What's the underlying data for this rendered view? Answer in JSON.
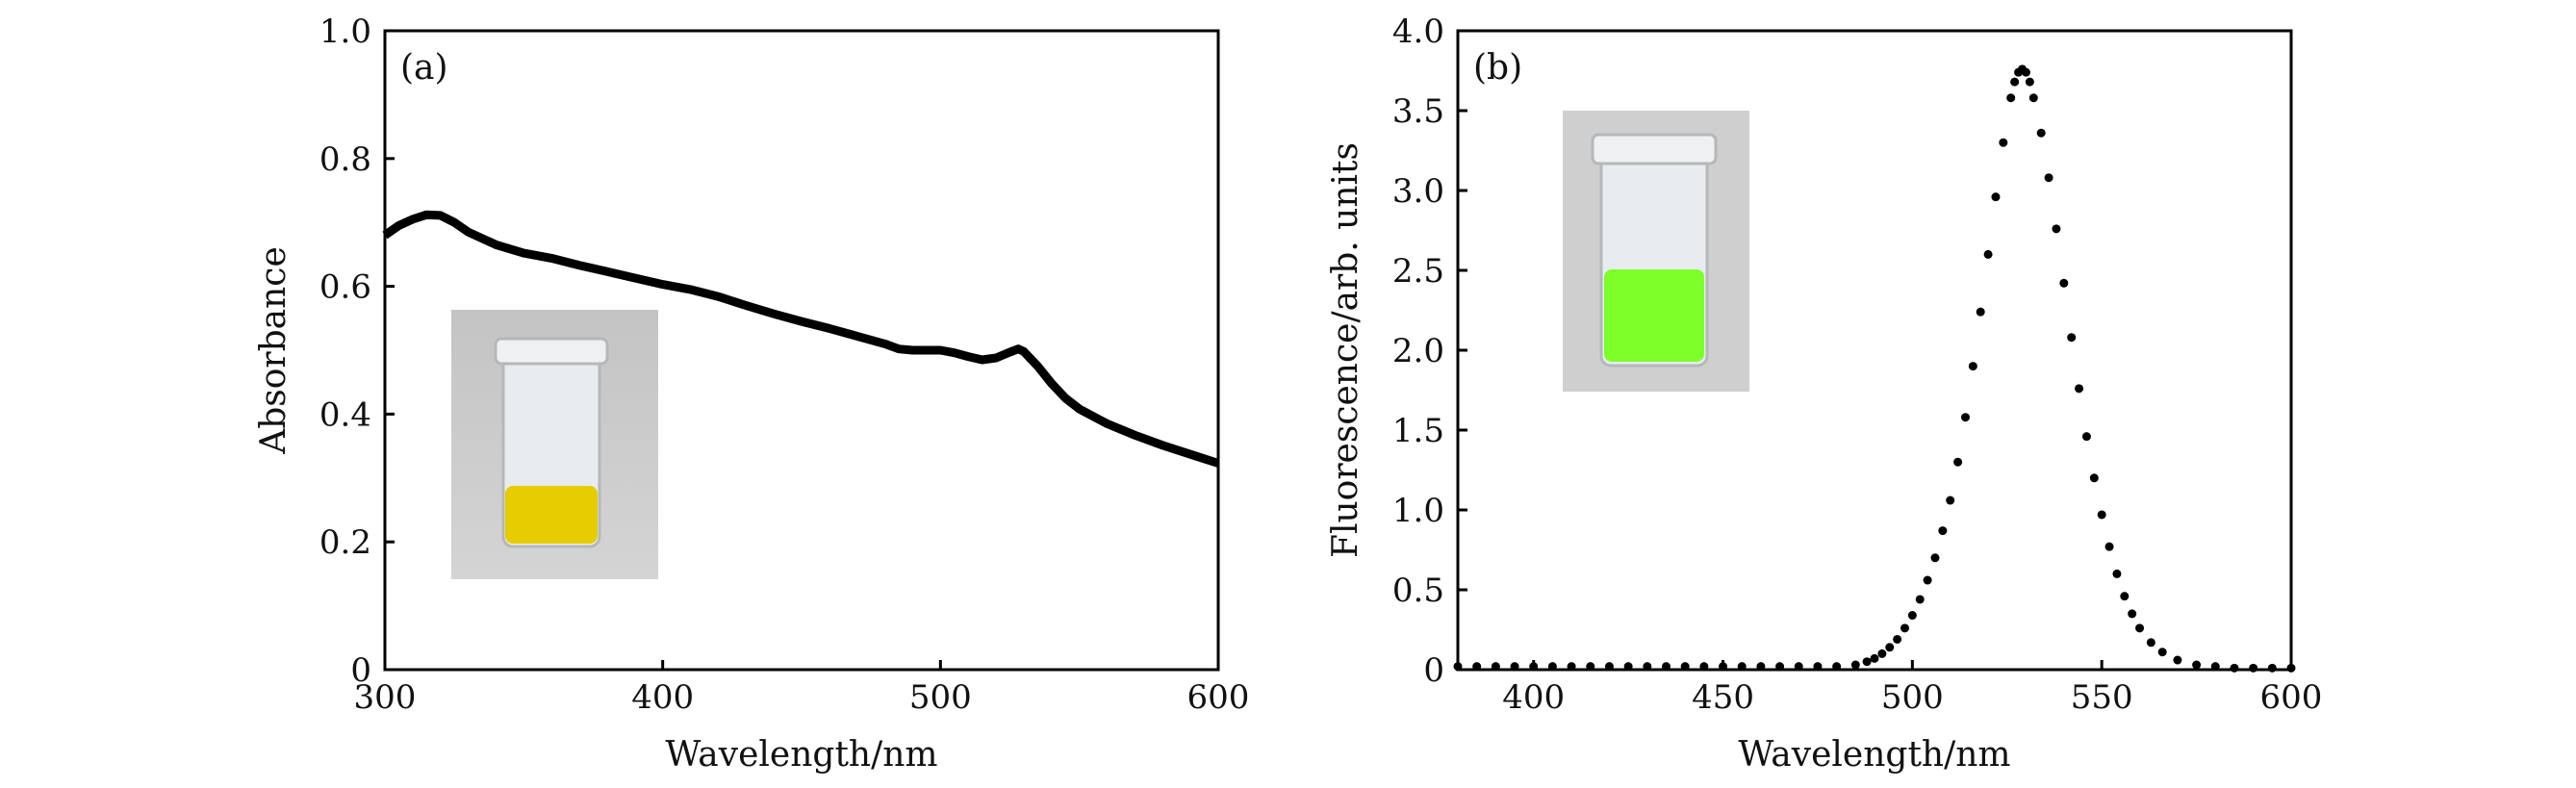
{
  "chart_data": [
    {
      "panel_label": "(a)",
      "type": "line",
      "xlabel": "Wavelength/nm",
      "ylabel": "Absorbance",
      "xlim": [
        300,
        600
      ],
      "ylim": [
        0,
        1.0
      ],
      "xticks": [
        "300",
        "400",
        "500",
        "600"
      ],
      "yticks": [
        "0",
        "0.2",
        "0.4",
        "0.6",
        "0.8",
        "1.0"
      ],
      "xtick_values": [
        300,
        400,
        500,
        600
      ],
      "ytick_values": [
        0,
        0.2,
        0.4,
        0.6,
        0.8,
        1.0
      ],
      "grid": false,
      "inset": "photo of a glass vial containing yellow solution",
      "inset_liquid_color": "#e6cc00",
      "series": [
        {
          "color": "#000000",
          "x": [
            300,
            305,
            310,
            315,
            320,
            325,
            330,
            340,
            350,
            360,
            370,
            380,
            390,
            400,
            410,
            420,
            430,
            440,
            450,
            460,
            470,
            480,
            485,
            490,
            500,
            505,
            510,
            515,
            520,
            525,
            528,
            530,
            535,
            540,
            545,
            550,
            560,
            570,
            580,
            590,
            600
          ],
          "y": [
            0.68,
            0.695,
            0.705,
            0.712,
            0.711,
            0.7,
            0.685,
            0.665,
            0.652,
            0.644,
            0.633,
            0.623,
            0.613,
            0.603,
            0.595,
            0.584,
            0.57,
            0.557,
            0.545,
            0.534,
            0.522,
            0.51,
            0.502,
            0.5,
            0.5,
            0.496,
            0.49,
            0.485,
            0.488,
            0.497,
            0.502,
            0.498,
            0.475,
            0.448,
            0.425,
            0.408,
            0.385,
            0.367,
            0.351,
            0.337,
            0.323
          ]
        }
      ]
    },
    {
      "panel_label": "(b)",
      "type": "scatter",
      "xlabel": "Wavelength/nm",
      "ylabel": "Fluorescence/arb. units",
      "xlim": [
        380,
        600
      ],
      "ylim": [
        0,
        4.0
      ],
      "xticks": [
        "400",
        "450",
        "500",
        "550",
        "600"
      ],
      "yticks": [
        "0",
        "0.5",
        "1.0",
        "1.5",
        "2.0",
        "2.5",
        "3.0",
        "3.5",
        "4.0"
      ],
      "xtick_values": [
        400,
        450,
        500,
        550,
        600
      ],
      "ytick_values": [
        0,
        0.5,
        1.0,
        1.5,
        2.0,
        2.5,
        3.0,
        3.5,
        4.0
      ],
      "grid": false,
      "inset": "photo of a glass vial containing fluorescent green solution",
      "inset_liquid_color": "#7dff2a",
      "series": [
        {
          "color": "#000000",
          "peak_x": 529,
          "peak_y": 3.75,
          "x": [
            380,
            385,
            390,
            395,
            400,
            405,
            410,
            415,
            420,
            425,
            430,
            435,
            440,
            445,
            450,
            455,
            460,
            465,
            470,
            475,
            480,
            485,
            488,
            490,
            492,
            494,
            496,
            498,
            500,
            502,
            504,
            506,
            508,
            510,
            512,
            514,
            516,
            518,
            520,
            522,
            524,
            526,
            527,
            528,
            529,
            530,
            531,
            532,
            534,
            536,
            538,
            540,
            542,
            544,
            546,
            548,
            550,
            552,
            554,
            556,
            558,
            560,
            563,
            566,
            570,
            575,
            580,
            585,
            590,
            595,
            600
          ],
          "y": [
            0.02,
            0.02,
            0.02,
            0.02,
            0.02,
            0.02,
            0.02,
            0.02,
            0.02,
            0.02,
            0.02,
            0.02,
            0.02,
            0.02,
            0.02,
            0.02,
            0.02,
            0.02,
            0.02,
            0.02,
            0.02,
            0.03,
            0.05,
            0.07,
            0.1,
            0.14,
            0.19,
            0.26,
            0.34,
            0.44,
            0.56,
            0.7,
            0.87,
            1.06,
            1.3,
            1.58,
            1.9,
            2.24,
            2.6,
            2.96,
            3.3,
            3.58,
            3.68,
            3.74,
            3.76,
            3.74,
            3.68,
            3.58,
            3.36,
            3.08,
            2.76,
            2.42,
            2.08,
            1.76,
            1.46,
            1.2,
            0.97,
            0.77,
            0.6,
            0.46,
            0.35,
            0.26,
            0.17,
            0.11,
            0.06,
            0.03,
            0.02,
            0.01,
            0.01,
            0.01,
            0.01
          ]
        }
      ]
    }
  ]
}
